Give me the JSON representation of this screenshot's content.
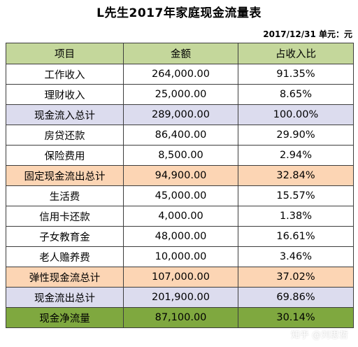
{
  "title": "L先生2017年家庭现金流量表",
  "meta": "2017/12/31 单元：元",
  "header": [
    "项目",
    "金额",
    "占收入比"
  ],
  "rows": [
    {
      "item": "工作收入",
      "amount": "264,000.00",
      "ratio": "91.35%"
    },
    {
      "item": "理财收入",
      "amount": "25,000.00",
      "ratio": "8.65%"
    },
    {
      "item": "现金流入总计",
      "amount": "289,000.00",
      "ratio": "100.00%"
    },
    {
      "item": "房贷还款",
      "amount": "86,400.00",
      "ratio": "29.90%"
    },
    {
      "item": "保险费用",
      "amount": "8,500.00",
      "ratio": "2.94%"
    },
    {
      "item": "固定现金流出总计",
      "amount": "94,900.00",
      "ratio": "32.84%"
    },
    {
      "item": "生活费",
      "amount": "45,000.00",
      "ratio": "15.57%"
    },
    {
      "item": "信用卡还款",
      "amount": "4,000.00",
      "ratio": "1.38%"
    },
    {
      "item": "子女教育金",
      "amount": "48,000.00",
      "ratio": "16.61%"
    },
    {
      "item": "老人赡养费",
      "amount": "10,000.00",
      "ratio": "3.46%"
    },
    {
      "item": "弹性现金流总计",
      "amount": "107,000.00",
      "ratio": "37.02%"
    },
    {
      "item": "现金流出总计",
      "amount": "201,900.00",
      "ratio": "69.86%"
    },
    {
      "item": "现金净流量",
      "amount": "87,100.00",
      "ratio": "30.14%"
    }
  ],
  "watermark": "知乎 @刘思哲",
  "colors": {
    "header_bg": "#c4d79b",
    "subtotal_bg": "#dcdcee",
    "outflow_subtotal_bg": "#fcd5b4",
    "net_bg": "#7fa83f",
    "border": "#3d3d3d"
  }
}
